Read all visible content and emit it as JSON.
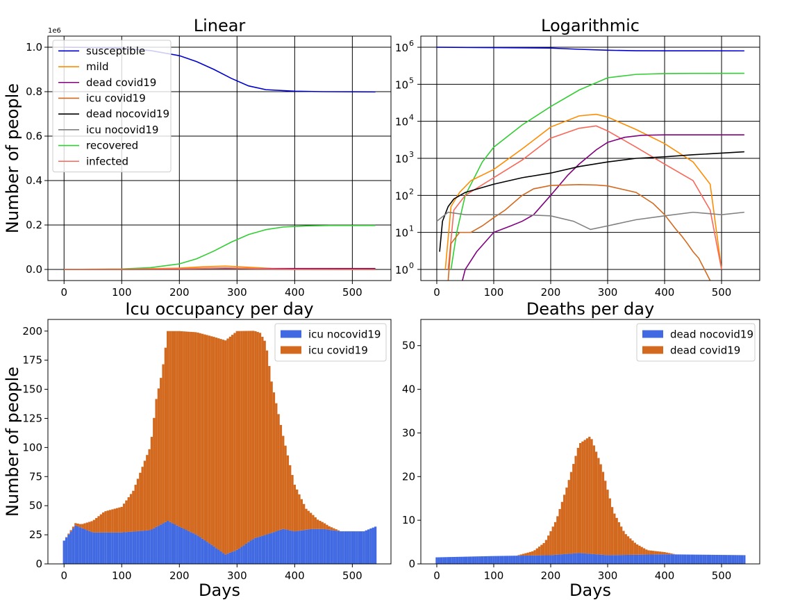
{
  "figure": {
    "background": "#ffffff"
  },
  "chart_data": [
    {
      "id": "linear",
      "type": "line",
      "title": "Linear",
      "xlabel": "",
      "ylabel": "Number of people",
      "xlim": [
        -28,
        567
      ],
      "ylim": [
        -0.05,
        1.05
      ],
      "xticks": [
        0,
        100,
        200,
        300,
        400,
        500
      ],
      "xtick_labels": [
        "0",
        "100",
        "200",
        "300",
        "400",
        "500"
      ],
      "yticks": [
        0.0,
        0.2,
        0.4,
        0.6,
        0.8,
        1.0
      ],
      "ytick_labels": [
        "0.0",
        "0.2",
        "0.4",
        "0.6",
        "0.8",
        "1.0"
      ],
      "y_offset_label": "1e6",
      "grid": true,
      "legend": "upper-left",
      "series": [
        {
          "name": "susceptible",
          "color": "#0000cd",
          "x": [
            0,
            50,
            100,
            150,
            200,
            230,
            260,
            290,
            320,
            350,
            400,
            450,
            540
          ],
          "y": [
            1.0,
            0.999,
            0.995,
            0.985,
            0.962,
            0.935,
            0.9,
            0.86,
            0.826,
            0.809,
            0.802,
            0.8,
            0.799
          ]
        },
        {
          "name": "mild",
          "color": "#ff8c00",
          "x": [
            0,
            100,
            200,
            240,
            280,
            320,
            360,
            400,
            540
          ],
          "y": [
            0,
            0.001,
            0.006,
            0.012,
            0.015,
            0.01,
            0.004,
            0.001,
            0
          ]
        },
        {
          "name": "dead covid19",
          "color": "#800080",
          "x": [
            0,
            150,
            200,
            250,
            300,
            350,
            540
          ],
          "y": [
            0,
            0,
            0.0002,
            0.001,
            0.003,
            0.004,
            0.004
          ]
        },
        {
          "name": "icu covid19",
          "color": "#d2691e",
          "x": [
            0,
            100,
            200,
            300,
            400,
            540
          ],
          "y": [
            0,
            0.0001,
            0.0002,
            0.0002,
            0.0001,
            0
          ]
        },
        {
          "name": "dead nocovid19",
          "color": "#000000",
          "x": [
            0,
            100,
            200,
            300,
            400,
            540
          ],
          "y": [
            0,
            0.0002,
            0.0004,
            0.0009,
            0.0012,
            0.0015
          ]
        },
        {
          "name": "icu nocovid19",
          "color": "#808080",
          "x": [
            0,
            540
          ],
          "y": [
            0,
            0
          ]
        },
        {
          "name": "recovered",
          "color": "#32cd32",
          "x": [
            0,
            100,
            150,
            200,
            230,
            260,
            290,
            320,
            350,
            380,
            420,
            460,
            540
          ],
          "y": [
            0,
            0.002,
            0.008,
            0.025,
            0.048,
            0.083,
            0.123,
            0.157,
            0.179,
            0.191,
            0.196,
            0.198,
            0.198
          ]
        },
        {
          "name": "infected",
          "color": "#fa6658",
          "x": [
            0,
            100,
            200,
            250,
            280,
            320,
            360,
            400,
            540
          ],
          "y": [
            0,
            0.0005,
            0.003,
            0.006,
            0.007,
            0.005,
            0.002,
            0.0005,
            0
          ]
        }
      ]
    },
    {
      "id": "log",
      "type": "line",
      "title": "Logarithmic",
      "xlabel": "",
      "ylabel": "",
      "scale": "log",
      "xlim": [
        -28,
        567
      ],
      "ylim": [
        0.5,
        2000000
      ],
      "xticks": [
        0,
        100,
        200,
        300,
        400,
        500
      ],
      "xtick_labels": [
        "0",
        "100",
        "200",
        "300",
        "400",
        "500"
      ],
      "yticks": [
        1,
        10,
        100,
        1000,
        10000,
        100000,
        1000000
      ],
      "ytick_labels": [
        [
          "10",
          "0"
        ],
        [
          "10",
          "1"
        ],
        [
          "10",
          "2"
        ],
        [
          "10",
          "3"
        ],
        [
          "10",
          "4"
        ],
        [
          "10",
          "5"
        ],
        [
          "10",
          "6"
        ]
      ],
      "grid": true,
      "series": [
        {
          "name": "susceptible",
          "color": "#0000cd",
          "x": [
            0,
            100,
            200,
            250,
            300,
            350,
            400,
            540
          ],
          "y": [
            1000000,
            980000,
            950000,
            880000,
            830000,
            805000,
            800000,
            799000
          ]
        },
        {
          "name": "recovered",
          "color": "#32cd32",
          "x": [
            25,
            35,
            50,
            80,
            100,
            150,
            200,
            250,
            300,
            350,
            400,
            450,
            540
          ],
          "y": [
            1,
            10,
            100,
            800,
            2000,
            8000,
            25000,
            70000,
            150000,
            185000,
            195000,
            197000,
            198000
          ]
        },
        {
          "name": "mild",
          "color": "#ff8c00",
          "x": [
            15,
            25,
            40,
            60,
            100,
            150,
            200,
            250,
            280,
            300,
            350,
            400,
            450,
            480,
            500
          ],
          "y": [
            1,
            50,
            120,
            250,
            500,
            1800,
            7000,
            14000,
            15500,
            13000,
            6000,
            2500,
            800,
            200,
            1
          ]
        },
        {
          "name": "infected",
          "color": "#fa6658",
          "x": [
            20,
            30,
            50,
            100,
            150,
            200,
            250,
            280,
            300,
            350,
            400,
            450,
            480,
            500
          ],
          "y": [
            1,
            40,
            100,
            300,
            900,
            3500,
            6500,
            7500,
            5500,
            2000,
            700,
            250,
            40,
            1
          ]
        },
        {
          "name": "dead covid19",
          "color": "#800080",
          "x": [
            45,
            50,
            70,
            100,
            130,
            150,
            170,
            200,
            230,
            250,
            280,
            300,
            330,
            360,
            400,
            540
          ],
          "y": [
            0.5,
            1,
            3,
            10,
            15,
            20,
            30,
            100,
            350,
            700,
            1700,
            2700,
            3700,
            4200,
            4300,
            4300
          ]
        },
        {
          "name": "dead nocovid19",
          "color": "#000000",
          "x": [
            5,
            10,
            20,
            30,
            50,
            100,
            150,
            200,
            250,
            300,
            350,
            400,
            450,
            540
          ],
          "y": [
            3,
            20,
            50,
            80,
            120,
            200,
            300,
            400,
            600,
            800,
            1000,
            1100,
            1250,
            1500
          ]
        },
        {
          "name": "icu covid19",
          "color": "#d2691e",
          "x": [
            20,
            25,
            40,
            60,
            80,
            100,
            120,
            150,
            170,
            200,
            250,
            280,
            300,
            350,
            380,
            400,
            420,
            430,
            440,
            450,
            460,
            470,
            480
          ],
          "y": [
            0.5,
            5,
            10,
            10,
            15,
            25,
            40,
            100,
            150,
            185,
            195,
            190,
            180,
            120,
            60,
            30,
            12,
            8,
            5,
            3,
            2,
            1,
            0.5
          ]
        },
        {
          "name": "icu nocovid19",
          "color": "#808080",
          "x": [
            0,
            20,
            50,
            100,
            150,
            200,
            240,
            270,
            300,
            350,
            400,
            450,
            500,
            540
          ],
          "y": [
            20,
            35,
            30,
            30,
            30,
            28,
            20,
            12,
            15,
            22,
            28,
            35,
            30,
            35
          ]
        }
      ]
    },
    {
      "id": "icu",
      "type": "bar",
      "stacked": true,
      "title": "Icu occupancy per day",
      "xlabel": "Days",
      "ylabel": "Number of people",
      "xlim": [
        -28,
        567
      ],
      "ylim": [
        0,
        210
      ],
      "xticks": [
        0,
        100,
        200,
        300,
        400,
        500
      ],
      "xtick_labels": [
        "0",
        "100",
        "200",
        "300",
        "400",
        "500"
      ],
      "yticks": [
        0,
        25,
        50,
        75,
        100,
        125,
        150,
        175,
        200
      ],
      "ytick_labels": [
        "0",
        "25",
        "50",
        "75",
        "100",
        "125",
        "150",
        "175",
        "200"
      ],
      "grid": false,
      "legend": "upper-right",
      "series": [
        {
          "name": "icu nocovid19",
          "color": "#4169e1",
          "x": [
            0,
            20,
            50,
            100,
            150,
            180,
            200,
            230,
            260,
            280,
            300,
            330,
            350,
            380,
            400,
            430,
            450,
            480,
            500,
            520,
            540
          ],
          "y": [
            20,
            33,
            27,
            27,
            29,
            37,
            32,
            25,
            15,
            8,
            12,
            22,
            25,
            30,
            28,
            30,
            30,
            28,
            28,
            28,
            32
          ]
        },
        {
          "name": "icu covid19",
          "color": "#d2691e",
          "x": [
            0,
            30,
            50,
            70,
            100,
            120,
            140,
            150,
            160,
            170,
            180,
            200,
            300,
            340,
            350,
            360,
            380,
            400,
            420,
            440,
            460,
            480,
            540
          ],
          "y": [
            0,
            3,
            10,
            18,
            22,
            35,
            60,
            72,
            110,
            130,
            163,
            168,
            188,
            175,
            165,
            130,
            80,
            40,
            18,
            8,
            3,
            0,
            0
          ]
        }
      ]
    },
    {
      "id": "deaths",
      "type": "bar",
      "stacked": true,
      "title": "Deaths per day",
      "xlabel": "Days",
      "ylabel": "",
      "xlim": [
        -28,
        567
      ],
      "ylim": [
        0,
        56
      ],
      "xticks": [
        0,
        100,
        200,
        300,
        400,
        500
      ],
      "xtick_labels": [
        "0",
        "100",
        "200",
        "300",
        "400",
        "500"
      ],
      "yticks": [
        0,
        10,
        20,
        30,
        40,
        50
      ],
      "ytick_labels": [
        "0",
        "10",
        "20",
        "30",
        "40",
        "50"
      ],
      "grid": false,
      "legend": "upper-right",
      "series": [
        {
          "name": "dead nocovid19",
          "color": "#4169e1",
          "x": [
            0,
            100,
            200,
            250,
            300,
            400,
            540
          ],
          "y": [
            1.5,
            1.8,
            2,
            2.5,
            2,
            2.2,
            2
          ]
        },
        {
          "name": "dead covid19",
          "color": "#d2691e",
          "x": [
            0,
            140,
            170,
            190,
            210,
            230,
            250,
            270,
            290,
            310,
            330,
            350,
            370,
            400,
            420,
            540
          ],
          "y": [
            0,
            0,
            1,
            3,
            8,
            16,
            25,
            27,
            20,
            10,
            5,
            2.5,
            1,
            0.5,
            0,
            0
          ]
        }
      ]
    }
  ]
}
